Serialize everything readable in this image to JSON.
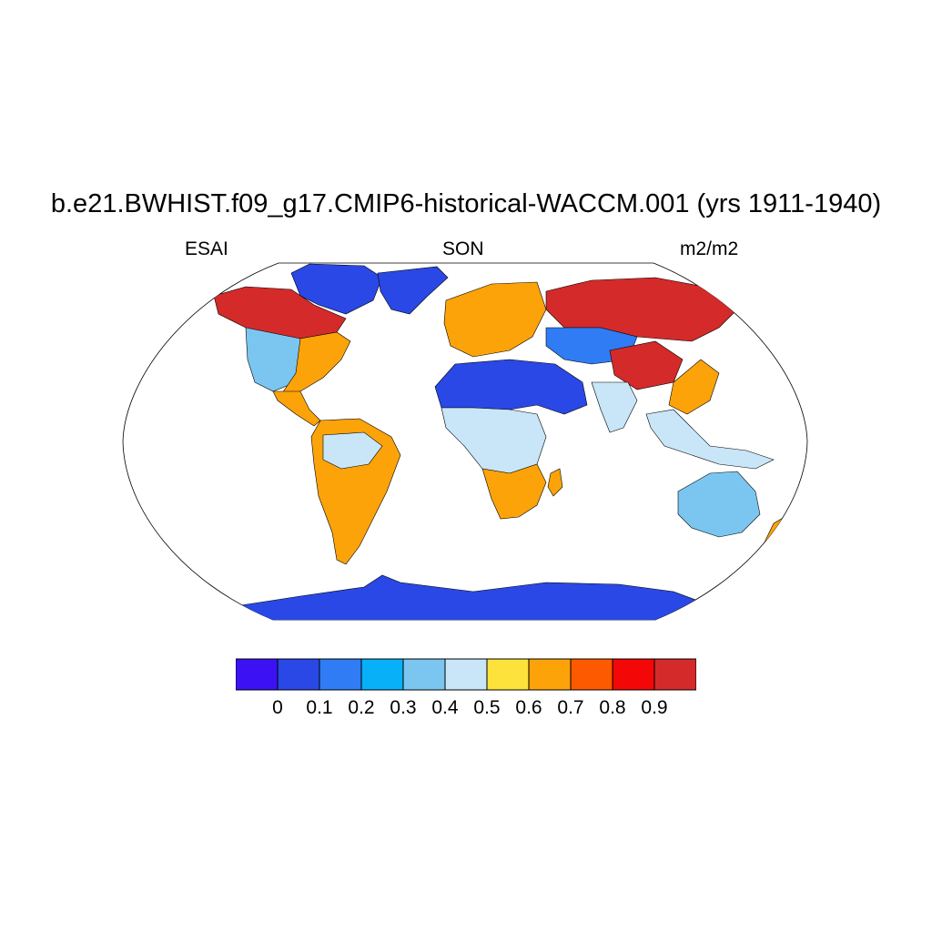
{
  "title": "b.e21.BWHIST.f09_g17.CMIP6-historical-WACCM.001 (yrs 1911-1940)",
  "left_label": "ESAI",
  "center_label": "SON",
  "right_label": "m2/m2",
  "colorbar": {
    "colors": [
      "#3c12f5",
      "#2a48e6",
      "#2f7cf4",
      "#08b0f8",
      "#7bc6f0",
      "#c9e6f8",
      "#fde23b",
      "#fca30a",
      "#fd5a00",
      "#f30707",
      "#d42a2a"
    ],
    "ticks": [
      "0",
      "0.1",
      "0.2",
      "0.3",
      "0.4",
      "0.5",
      "0.6",
      "0.7",
      "0.8",
      "0.9"
    ]
  },
  "map": {
    "projection": "Robinson",
    "ocean_color": "#ffffff",
    "regions": [
      {
        "name": "canada-arctic",
        "color": "#2a48e6"
      },
      {
        "name": "greenland",
        "color": "#2a48e6"
      },
      {
        "name": "alaska-canada-boreal",
        "color": "#d42a2a"
      },
      {
        "name": "north-america-west",
        "color": "#7bc6f0"
      },
      {
        "name": "eastern-usa",
        "color": "#fca30a"
      },
      {
        "name": "south-america",
        "color": "#fca30a"
      },
      {
        "name": "amazon",
        "color": "#c9e6f8"
      },
      {
        "name": "europe",
        "color": "#fca30a"
      },
      {
        "name": "sahara-arabia",
        "color": "#2a48e6"
      },
      {
        "name": "central-africa",
        "color": "#c9e6f8"
      },
      {
        "name": "southern-africa",
        "color": "#fca30a"
      },
      {
        "name": "siberia",
        "color": "#d42a2a"
      },
      {
        "name": "central-asia",
        "color": "#2f7cf4"
      },
      {
        "name": "tibet",
        "color": "#d42a2a"
      },
      {
        "name": "india",
        "color": "#c9e6f8"
      },
      {
        "name": "southeast-asia",
        "color": "#c9e6f8"
      },
      {
        "name": "australia",
        "color": "#7bc6f0"
      },
      {
        "name": "antarctica",
        "color": "#2a48e6"
      }
    ]
  }
}
